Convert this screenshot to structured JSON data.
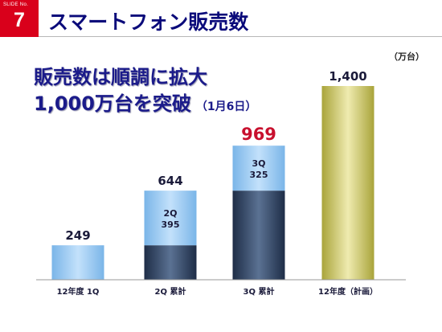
{
  "slide": {
    "badge_label": "SLIDE No.",
    "badge_number": "7",
    "title": "スマートフォン販売数",
    "headline_line1": "販売数は順調に拡大",
    "headline_line2": "1,000万台を突破",
    "headline_note": "（1月6日）",
    "unit": "（万台）",
    "colors": {
      "badge_red": "#d9001b",
      "title_navy": "#0a0a7a",
      "value_highlight_red": "#c8102e",
      "bar_light_blue": "#a9d2f5",
      "bar_dark_navy": "#2c3e5c",
      "bar_olive_gold": "#c9c45a"
    }
  },
  "chart_data": {
    "type": "bar",
    "categories": [
      "12年度 1Q",
      "2Q 累計",
      "3Q 累計",
      "12年度（計画）"
    ],
    "totals": [
      249,
      644,
      969,
      1400
    ],
    "total_labels": [
      "249",
      "644",
      "969",
      "1,400"
    ],
    "highlighted_total_index": 2,
    "stacked_segments": [
      [
        {
          "part": "current",
          "value": 249
        }
      ],
      [
        {
          "part": "cumulative_prior",
          "value": 249
        },
        {
          "part": "current",
          "value": 395,
          "label_line1": "2Q",
          "label_line2": "395"
        }
      ],
      [
        {
          "part": "cumulative_prior",
          "value": 644
        },
        {
          "part": "current",
          "value": 325,
          "label_line1": "3Q",
          "label_line2": "325"
        }
      ],
      [
        {
          "part": "plan",
          "value": 1400
        }
      ]
    ],
    "ylim": [
      0,
      1400
    ],
    "grid": false,
    "legend": "none"
  }
}
